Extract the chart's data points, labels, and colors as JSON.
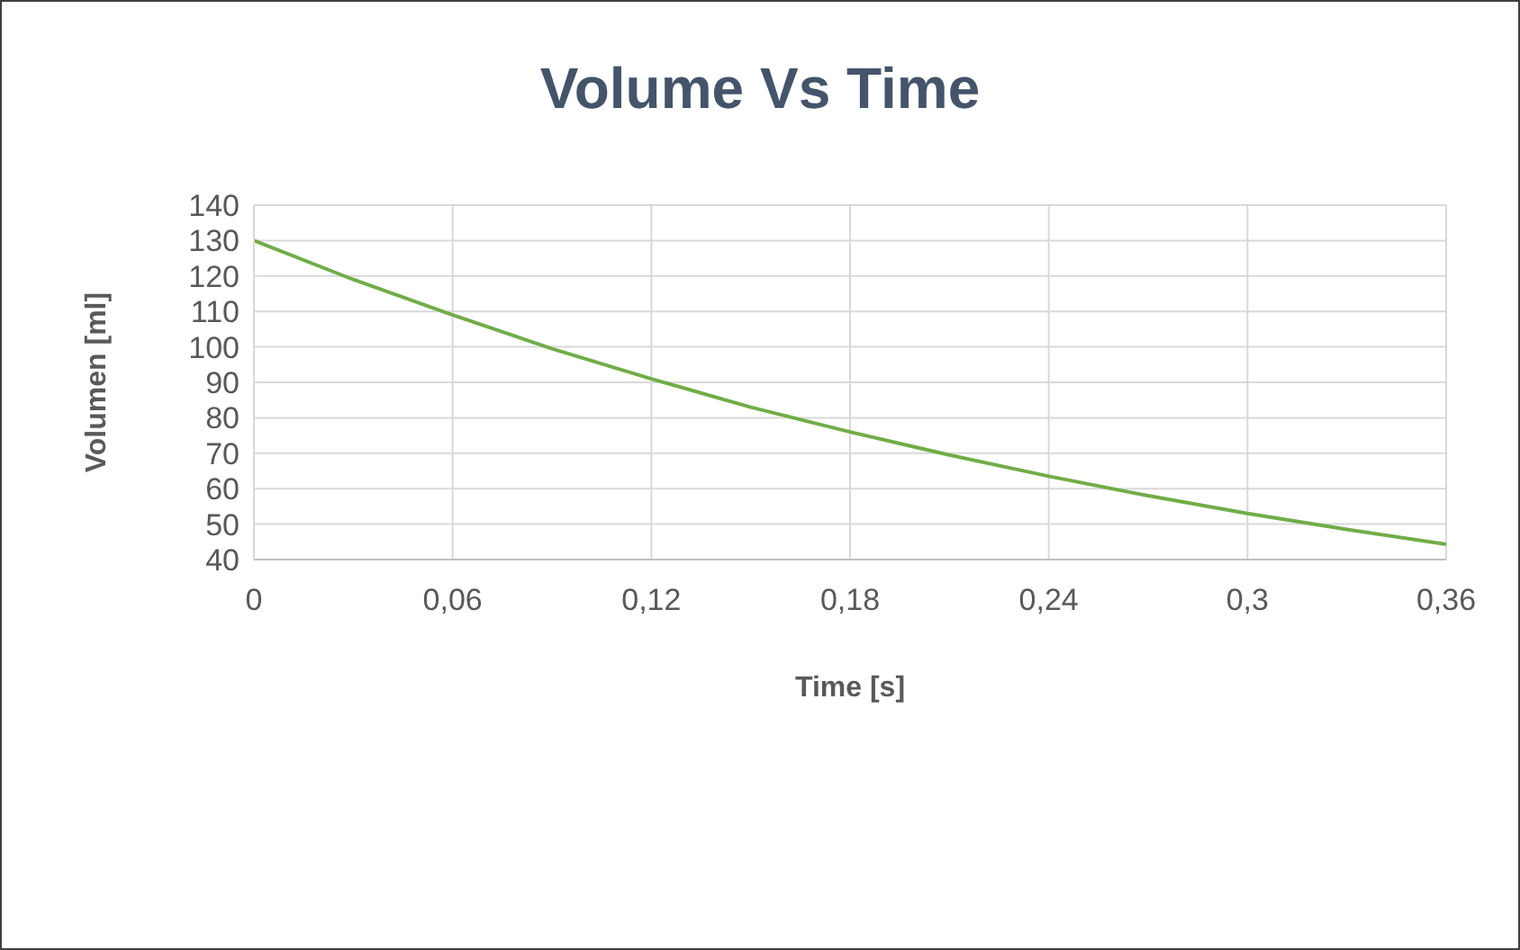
{
  "chart_data": {
    "type": "line",
    "title": "Volume Vs Time",
    "xlabel": "Time [s]",
    "ylabel": "Volumen [ml]",
    "x": [
      0,
      0.03,
      0.06,
      0.09,
      0.12,
      0.15,
      0.18,
      0.21,
      0.24,
      0.27,
      0.3,
      0.33,
      0.36
    ],
    "series": [
      {
        "color": "#70ad47",
        "values": [
          130,
          119,
          109,
          99.5,
          91,
          83,
          76,
          69.5,
          63.5,
          58,
          53,
          48.5,
          44.3
        ]
      }
    ],
    "xlim": [
      0,
      0.36
    ],
    "xticks": [
      0,
      {
        "value": 0.06,
        "label": "0,06"
      },
      {
        "value": 0.12,
        "label": "0,12"
      },
      {
        "value": 0.18,
        "label": "0,18"
      },
      {
        "value": 0.24,
        "label": "0,24"
      },
      {
        "value": 0.3,
        "label": "0,3"
      },
      {
        "value": 0.36,
        "label": "0,36"
      }
    ],
    "ylim": [
      40,
      140
    ],
    "yticks": [
      40,
      50,
      60,
      70,
      80,
      90,
      100,
      110,
      120,
      130,
      140
    ],
    "grid": true,
    "legend": false,
    "marker": "none",
    "line_style": "solid"
  }
}
